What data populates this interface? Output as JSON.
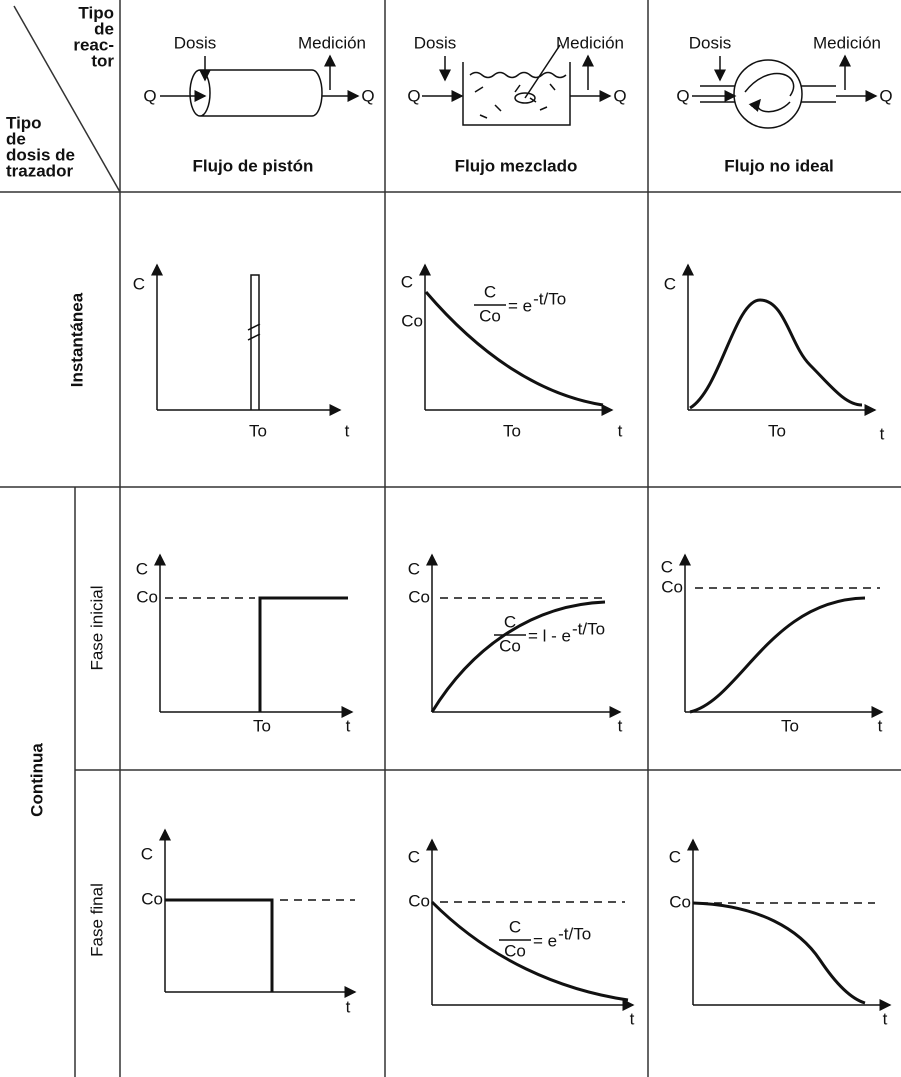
{
  "header": {
    "corner": {
      "reactor_type": [
        "Tipo",
        "de",
        "reac-",
        "tor"
      ],
      "tracer_type": [
        "Tipo",
        "de",
        "dosis de",
        "trazador"
      ]
    },
    "columns": [
      {
        "title": "Flujo de pistón",
        "dose": "Dosis",
        "measurement": "Medición",
        "inflow": "Q",
        "outflow": "Q"
      },
      {
        "title": "Flujo mezclado",
        "dose": "Dosis",
        "measurement": "Medición",
        "inflow": "Q",
        "outflow": "Q"
      },
      {
        "title": "Flujo no ideal",
        "dose": "Dosis",
        "measurement": "Medición",
        "inflow": "Q",
        "outflow": "Q"
      }
    ]
  },
  "rows": [
    {
      "label": "Instantánea"
    },
    {
      "label": "Continua",
      "phases": [
        "Fase inicial",
        "Fase final"
      ]
    }
  ],
  "cells": [
    [
      {
        "y": "C",
        "time": "To",
        "x": "t"
      },
      {
        "y": "C",
        "level": "Co",
        "time": "To",
        "x": "t",
        "formula": {
          "numerator": "C",
          "denominator": "Co",
          "rhs": "= e",
          "exponent": "-t/To"
        }
      },
      {
        "y": "C",
        "time": "To",
        "x": "t"
      }
    ],
    [
      {
        "y": "C",
        "level": "Co",
        "time": "To",
        "x": "t"
      },
      {
        "y": "C",
        "level": "Co",
        "x": "t",
        "formula": {
          "numerator": "C",
          "denominator": "Co",
          "rhs": "= l - e",
          "exponent": "-t/To"
        }
      },
      {
        "y": "C",
        "level": "Co",
        "time": "To",
        "x": "t"
      }
    ],
    [
      {
        "y": "C",
        "level": "Co",
        "x": "t"
      },
      {
        "y": "C",
        "level": "Co",
        "x": "t",
        "formula": {
          "numerator": "C",
          "denominator": "Co",
          "rhs": "= e",
          "exponent": "-t/To"
        }
      },
      {
        "y": "C",
        "level": "Co",
        "x": "t"
      }
    ]
  ]
}
